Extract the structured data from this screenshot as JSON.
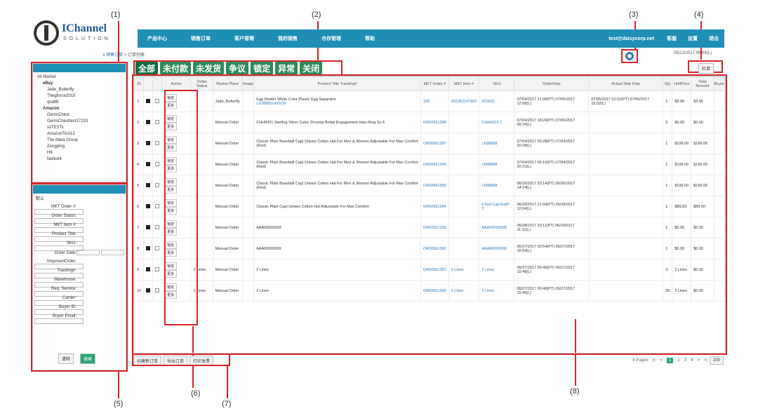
{
  "annotations": [
    "(1)",
    "(2)",
    "(3)",
    "(4)",
    "(5)",
    "(6)",
    "(7)",
    "(8)"
  ],
  "logo": {
    "brand": "IChannel",
    "sub": "SOLUTION"
  },
  "topnav": [
    "产品中心",
    "销售订单",
    "客户管理",
    "我的销售",
    "仓存管理",
    "帮助"
  ],
  "user": {
    "email": "test@daisycorp.net",
    "items": [
      "客服",
      "设置",
      "退出"
    ]
  },
  "breadcrumb": {
    "home": "销售订单",
    "sep": ">",
    "current": "订单列表"
  },
  "timestamp": "05/13/2017 09:08(L)",
  "column_button": "栏目",
  "tabs": [
    "全部",
    "未付款",
    "未发货",
    "争议",
    "锁定",
    "异常",
    "关闭"
  ],
  "stores": {
    "all": "All Market",
    "ebay": "eBay",
    "ebay_items": [
      "Jade_Butterfly",
      "Thegforce2015",
      "qsd88"
    ],
    "amazon": "Amazon",
    "amazon_items": [
      "GemsChest",
      "GemsChesttest17233",
      "ssTESTs",
      "AmazonTest12",
      "The Mara Group",
      "Zengping",
      "HK",
      "fastest4"
    ]
  },
  "filter": {
    "preset": "默认",
    "fields": [
      "MKT Order #:",
      "Order Status:",
      "MKT Item #:",
      "Product Title:",
      "SKU:",
      "Order Date:",
      "ShipmentOrder:",
      "Tracking#:",
      "Warehouse:",
      "Req. Service:",
      "Carrier:",
      "Buyer ID:",
      "Buyer Email:"
    ],
    "clear": "清除",
    "search": "搜索"
  },
  "table": {
    "headers": [
      "ID",
      "",
      "",
      "Action",
      "Order Status",
      "Market Place",
      "Image",
      "Product Title Tracking#",
      "MKT Order #",
      "MKT Item #",
      "SKU",
      "OrderDate",
      "Actual Ship Date",
      "Qty",
      "UnitPrice",
      "Total Amount",
      "Buyer"
    ],
    "action_lock": "锁定",
    "action_more": "更多",
    "rows": [
      {
        "id": "1",
        "status": "",
        "market": "Jade_Butterfly",
        "title": "Egg Divider White Color Plastic Egg Separator",
        "tracking": "LX289551492CN",
        "order": "109",
        "item": "302362247802",
        "sku": "JC0001",
        "date": "07/04/2017 21:08(PT) 07/05/2017 12:08(L)",
        "ship": "07/05/2017 01:52(PT) 07/05/2017 16:52(L)",
        "qty": "1",
        "unit": "$3.95",
        "total": "$3.95"
      },
      {
        "id": "2",
        "status": "",
        "market": "Manual Order",
        "title": "CHH0001 Sterling Silver Cubic Zirconia Bridal Engagement Halo Ring Sz 6",
        "tracking": "",
        "order": "OR00561398",
        "item": "",
        "sku": "CHH0001-1",
        "date": "07/04/2017 18:24(PT) 07/05/2017 09:24(L)",
        "ship": "",
        "qty": "2",
        "unit": "$0.00",
        "total": "$0.00"
      },
      {
        "id": "3",
        "status": "",
        "market": "Manual Order",
        "title": "Classic Plain Baseball Cap| Unisex Cotton Hat For Men & Women Adjustable For Max Comfort (Red)",
        "tracking": "",
        "order": "OR00561397",
        "item": "",
        "sku": "LK88888",
        "date": "07/04/2017 05:28(PT) 07/04/2017 20:28(L)",
        "ship": "",
        "qty": "1",
        "unit": "$199.00",
        "total": "$199.00"
      },
      {
        "id": "4",
        "status": "",
        "market": "Manual Order",
        "title": "Classic Plain Baseball Cap| Unisex Cotton Hat For Men & Women Adjustable For Max Comfort (Red)",
        "tracking": "",
        "order": "OR00561396",
        "item": "",
        "sku": "LK88888",
        "date": "07/04/2017 05:10(PT) 07/04/2017 20:10(L)",
        "ship": "",
        "qty": "1",
        "unit": "$199.00",
        "total": "$199.00"
      },
      {
        "id": "5",
        "status": "",
        "market": "Manual Order",
        "title": "Classic Plain Baseball Cap| Unisex Cotton Hat For Men & Women Adjustable For Max Comfort (Red)",
        "tracking": "",
        "order": "OR00561395",
        "item": "",
        "sku": "LK88888",
        "date": "06/29/2017 23:14(PT) 06/30/2017 14:14(L)",
        "ship": "",
        "qty": "1",
        "unit": "$199.00",
        "total": "$199.00"
      },
      {
        "id": "6",
        "status": "",
        "market": "Manual Order",
        "title": "Classic Plain Cap| Unisex Cotton Hat Adjustable For Max Comfort",
        "tracking": "",
        "order": "OR00561394",
        "item": "",
        "sku": "eTest-CapTestP-2",
        "date": "06/28/2017 21:04(PT) 06/29/2017 12:04(L)",
        "ship": "",
        "qty": "1",
        "unit": "$89.50",
        "total": "$89.50"
      },
      {
        "id": "7",
        "status": "",
        "market": "Manual Order",
        "title": "AAA00000009",
        "tracking": "",
        "order": "OR00561393",
        "item": "",
        "sku": "AAA00000009",
        "date": "06/28/2017 20:11(PT) 06/29/2017 11:11(L)",
        "ship": "",
        "qty": "1",
        "unit": "$0.00",
        "total": "$0.00"
      },
      {
        "id": "8",
        "status": "",
        "market": "Manual Order",
        "title": "AAA00000009",
        "tracking": "",
        "order": "OR00561392",
        "item": "",
        "sku": "AAA00000009",
        "date": "06/27/2017 00:54(PT) 06/27/2017 15:54(L)",
        "ship": "",
        "qty": "1",
        "unit": "$0.00",
        "total": "$0.00"
      },
      {
        "id": "9",
        "status": "2 Lines",
        "market": "Manual Order",
        "title": "2 Lines",
        "tracking": "",
        "order": "OR00561391",
        "item": "2 Lines",
        "sku": "2 Lines",
        "date": "06/27/2017 00:49(PT) 06/27/2017 15:49(L)",
        "ship": "",
        "qty": "3",
        "unit": "2 Lines",
        "total": "$0.00"
      },
      {
        "id": "10",
        "status": "2 Lines",
        "market": "Manual Order",
        "title": "2 Lines",
        "tracking": "",
        "order": "OR00561390",
        "item": "2 Lines",
        "sku": "2 Lines",
        "date": "06/27/2017 00:46(PT) 06/27/2017 15:46(L)",
        "ship": "",
        "qty": "25",
        "unit": "2 Lines",
        "total": "$0.00"
      }
    ]
  },
  "footer": {
    "buttons": [
      "创建新订单",
      "导出订单",
      "打印发票"
    ],
    "pages": "6 Pages",
    "nav": [
      "|<",
      "<",
      "1",
      "2",
      "3",
      "4",
      ">",
      ">|"
    ],
    "page_size": "200"
  }
}
